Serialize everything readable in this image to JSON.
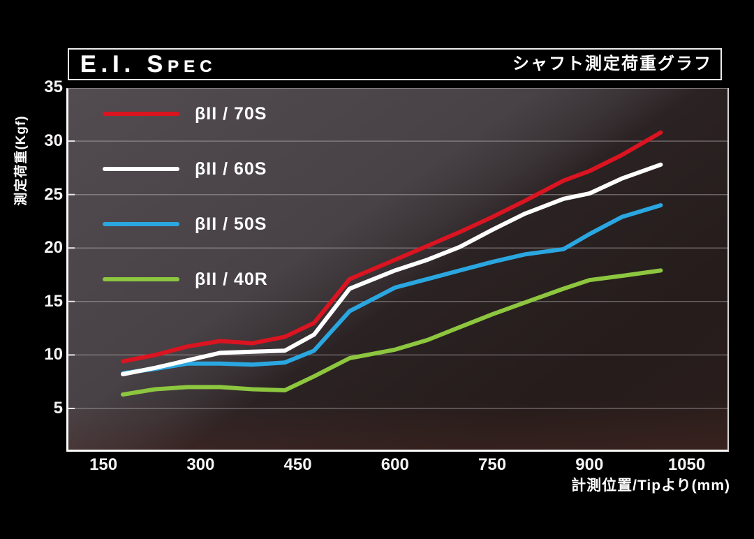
{
  "header": {
    "title": "E.I. Spec",
    "subtitle": "シャフト測定荷重グラフ"
  },
  "axes": {
    "y_label": "測定荷重(Kgf)",
    "x_label": "計測位置/Tipより(mm)"
  },
  "colors": {
    "background": "#000000",
    "plot_bg_light": "#4a4449",
    "plot_bg_dark": "#261d1c",
    "axis_line": "#fbfbfb",
    "gridline": "#c8c4c5",
    "tick_text": "#f5f3f3",
    "series_red": "#da1420",
    "series_white": "#ffffff",
    "series_blue": "#2aa7e0",
    "series_green": "#8dc63f"
  },
  "chart_data": {
    "type": "line",
    "title": "E.I. Spec シャフト測定荷重グラフ",
    "xlabel": "計測位置/Tipより(mm)",
    "ylabel": "測定荷重(Kgf)",
    "x_ticks": [
      150,
      300,
      450,
      600,
      750,
      900,
      1050
    ],
    "y_ticks": [
      35,
      30,
      25,
      20,
      15,
      10,
      5
    ],
    "gridline_values": [
      30,
      25,
      20,
      15,
      10,
      5
    ],
    "xlim": [
      96,
      1113
    ],
    "ylim": [
      1.15,
      34.9
    ],
    "grid": true,
    "legend_position": "upper-left-inside",
    "x": [
      180,
      230,
      280,
      330,
      380,
      430,
      475,
      530,
      600,
      650,
      700,
      750,
      800,
      860,
      900,
      950,
      1010
    ],
    "series": [
      {
        "name": "βII / 70S",
        "color": "#da1420",
        "values": [
          9.4,
          10.0,
          10.8,
          11.3,
          11.1,
          11.7,
          13.0,
          17.1,
          18.9,
          20.2,
          21.5,
          22.9,
          24.4,
          26.3,
          27.2,
          28.7,
          30.8
        ]
      },
      {
        "name": "βII / 60S",
        "color": "#ffffff",
        "values": [
          8.2,
          8.8,
          9.5,
          10.2,
          10.3,
          10.4,
          11.9,
          16.2,
          17.9,
          18.9,
          20.1,
          21.7,
          23.2,
          24.6,
          25.1,
          26.5,
          27.8
        ]
      },
      {
        "name": "βII / 50S",
        "color": "#2aa7e0",
        "values": [
          8.3,
          8.7,
          9.2,
          9.2,
          9.1,
          9.3,
          10.4,
          14.1,
          16.3,
          17.1,
          17.9,
          18.7,
          19.4,
          19.9,
          21.3,
          22.9,
          24.0
        ]
      },
      {
        "name": "βII / 40R",
        "color": "#8dc63f",
        "values": [
          6.3,
          6.8,
          7.0,
          7.0,
          6.8,
          6.7,
          8.0,
          9.7,
          10.5,
          11.4,
          12.6,
          13.8,
          14.9,
          16.2,
          17.0,
          17.4,
          17.9
        ]
      }
    ]
  }
}
